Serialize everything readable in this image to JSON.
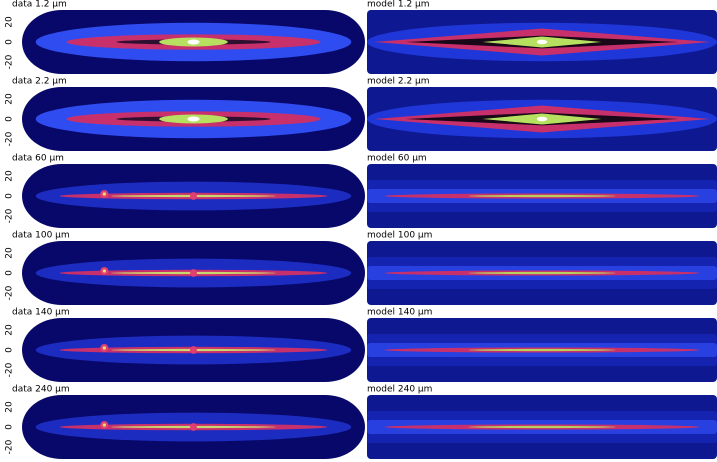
{
  "panels": [
    {
      "data_label": "data 1.2 μm",
      "model_label": "model 1.2 μm",
      "yticks": [
        20,
        0,
        -20
      ]
    },
    {
      "data_label": "data 2.2 μm",
      "model_label": "model 2.2 μm",
      "yticks": [
        20,
        0,
        -20
      ]
    },
    {
      "data_label": "data 60 μm",
      "model_label": "model 60 μm",
      "yticks": [
        20,
        0,
        -20
      ]
    },
    {
      "data_label": "data 100 μm",
      "model_label": "model 100 μm",
      "yticks": [
        20,
        0,
        -20
      ]
    },
    {
      "data_label": "data 140 μm",
      "model_label": "model 140 μm",
      "yticks": [
        20,
        0,
        -20
      ]
    },
    {
      "data_label": "data 240 μm",
      "model_label": "model 240 μm",
      "yticks": [
        20,
        0,
        -20
      ]
    }
  ]
}
